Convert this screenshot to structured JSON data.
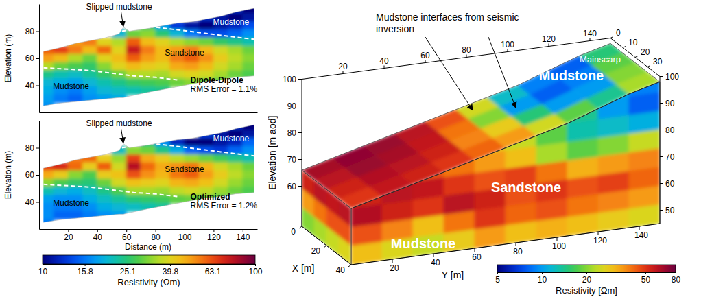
{
  "chart_data": [
    {
      "type": "heatmap",
      "title": "Dipole-Dipole",
      "annotations": [
        "Slipped mudstone",
        "Mudstone",
        "Sandstone",
        "Mudstone",
        "RMS Error = 1.1%"
      ],
      "y_label": "Elevation (m)",
      "xlim": [
        0,
        150
      ],
      "ylim": [
        20,
        100
      ],
      "yticks": [
        40,
        60,
        80
      ],
      "tick_labels": "y",
      "x": [
        5,
        15,
        25,
        35,
        45,
        55,
        65,
        75,
        85,
        95,
        105,
        115,
        125,
        135,
        145
      ],
      "y": [
        96,
        90,
        84,
        78,
        72,
        66,
        60,
        54,
        48,
        42,
        36,
        30,
        24
      ],
      "cells": [
        [
          null,
          null,
          null,
          null,
          null,
          null,
          null,
          null,
          null,
          null,
          null,
          null,
          null,
          12,
          10
        ],
        [
          null,
          null,
          null,
          null,
          null,
          null,
          null,
          null,
          null,
          null,
          null,
          12,
          11,
          10,
          11
        ],
        [
          null,
          null,
          null,
          null,
          null,
          null,
          null,
          25,
          18,
          13,
          11,
          10,
          11,
          12,
          14
        ],
        [
          null,
          null,
          null,
          null,
          null,
          20,
          30,
          32,
          25,
          20,
          16,
          14,
          14,
          15,
          17
        ],
        [
          null,
          null,
          50,
          55,
          40,
          35,
          60,
          45,
          40,
          35,
          32,
          30,
          26,
          24,
          22
        ],
        [
          60,
          65,
          55,
          45,
          58,
          40,
          75,
          55,
          45,
          50,
          55,
          45,
          38,
          34,
          30
        ],
        [
          50,
          45,
          35,
          30,
          40,
          45,
          60,
          50,
          45,
          55,
          60,
          52,
          42,
          36,
          32
        ],
        [
          35,
          30,
          28,
          26,
          32,
          40,
          45,
          42,
          40,
          48,
          50,
          45,
          38,
          34,
          30
        ],
        [
          24,
          22,
          21,
          23,
          26,
          30,
          35,
          35,
          34,
          38,
          40,
          38,
          34,
          30,
          28
        ],
        [
          20,
          19,
          18,
          20,
          22,
          24,
          26,
          27,
          28,
          30,
          32,
          30,
          28,
          null,
          null
        ],
        [
          19,
          17,
          16,
          18,
          20,
          21,
          22,
          23,
          24,
          null,
          null,
          null,
          null,
          null,
          null
        ],
        [
          18,
          16,
          15,
          17,
          18,
          19,
          null,
          null,
          null,
          null,
          null,
          null,
          null,
          null,
          null
        ],
        [
          17,
          null,
          null,
          null,
          null,
          null,
          null,
          null,
          null,
          null,
          null,
          null,
          null,
          null,
          null
        ]
      ],
      "outline": {
        "x": [
          3,
          15,
          25,
          35,
          45,
          55,
          58,
          62,
          75,
          85,
          95,
          105,
          115,
          125,
          135,
          148
        ],
        "top": [
          65,
          68,
          71,
          73,
          75,
          78,
          83,
          80,
          82,
          84,
          86,
          87,
          89,
          91,
          94,
          97
        ],
        "bottom": [
          25,
          27,
          28,
          29,
          30,
          31,
          31,
          32,
          35,
          37,
          39,
          41,
          43,
          44,
          46,
          47
        ]
      },
      "interfaces": [
        {
          "x": [
            57,
            68,
            80,
            95,
            110,
            125,
            140,
            148
          ],
          "y": [
            80,
            82,
            83,
            81,
            79,
            77,
            75,
            74
          ],
          "color": "#ffffff",
          "line_style": "dashed"
        },
        {
          "x": [
            3,
            20,
            35,
            50,
            65,
            80,
            95
          ],
          "y": [
            53,
            52,
            51,
            49,
            47,
            46,
            44
          ],
          "color": "#ffffff",
          "line_style": "dashed"
        }
      ]
    },
    {
      "type": "heatmap",
      "title": "Optimized",
      "annotations": [
        "Slipped mudstone",
        "Mudstone",
        "Sandstone",
        "Mudstone",
        "RMS Error = 1.2%"
      ],
      "y_label": "Elevation (m)",
      "x_label": "Distance (m)",
      "xlim": [
        0,
        150
      ],
      "ylim": [
        20,
        100
      ],
      "xticks": [
        20,
        40,
        60,
        80,
        100,
        120,
        140
      ],
      "yticks": [
        40,
        60,
        80
      ],
      "x": [
        5,
        15,
        25,
        35,
        45,
        55,
        65,
        75,
        85,
        95,
        105,
        115,
        125,
        135,
        145
      ],
      "y": [
        96,
        90,
        84,
        78,
        72,
        66,
        60,
        54,
        48,
        42,
        36,
        30,
        24
      ],
      "cells": [
        [
          null,
          null,
          null,
          null,
          null,
          null,
          null,
          null,
          null,
          null,
          null,
          null,
          null,
          12,
          10
        ],
        [
          null,
          null,
          null,
          null,
          null,
          null,
          null,
          null,
          null,
          null,
          null,
          13,
          11,
          10,
          11
        ],
        [
          null,
          null,
          null,
          null,
          null,
          null,
          null,
          24,
          17,
          12,
          10,
          10,
          11,
          12,
          15
        ],
        [
          null,
          null,
          null,
          null,
          null,
          21,
          32,
          30,
          24,
          19,
          15,
          14,
          13,
          15,
          17
        ],
        [
          null,
          null,
          55,
          58,
          42,
          33,
          65,
          48,
          42,
          36,
          33,
          30,
          27,
          24,
          22
        ],
        [
          65,
          70,
          58,
          42,
          60,
          38,
          80,
          58,
          48,
          52,
          56,
          46,
          38,
          34,
          30
        ],
        [
          48,
          42,
          32,
          28,
          42,
          44,
          62,
          52,
          46,
          56,
          60,
          50,
          42,
          36,
          32
        ],
        [
          32,
          28,
          26,
          25,
          30,
          38,
          44,
          42,
          40,
          46,
          48,
          44,
          38,
          33,
          30
        ],
        [
          22,
          20,
          19,
          21,
          24,
          28,
          34,
          34,
          33,
          36,
          38,
          36,
          33,
          30,
          28
        ],
        [
          18,
          17,
          17,
          19,
          21,
          23,
          25,
          26,
          27,
          29,
          30,
          29,
          28,
          null,
          null
        ],
        [
          17,
          16,
          16,
          17,
          19,
          20,
          21,
          22,
          23,
          null,
          null,
          null,
          null,
          null,
          null
        ],
        [
          17,
          15,
          15,
          16,
          17,
          18,
          null,
          null,
          null,
          null,
          null,
          null,
          null,
          null,
          null
        ],
        [
          16,
          null,
          null,
          null,
          null,
          null,
          null,
          null,
          null,
          null,
          null,
          null,
          null,
          null,
          null
        ]
      ],
      "outline": {
        "x": [
          3,
          15,
          25,
          35,
          45,
          55,
          58,
          62,
          75,
          85,
          95,
          105,
          115,
          125,
          135,
          148
        ],
        "top": [
          65,
          68,
          71,
          73,
          75,
          78,
          83,
          80,
          82,
          84,
          86,
          87,
          89,
          91,
          94,
          97
        ],
        "bottom": [
          25,
          27,
          28,
          29,
          30,
          31,
          31,
          32,
          35,
          37,
          39,
          41,
          43,
          44,
          46,
          47
        ]
      },
      "interfaces": [
        {
          "x": [
            57,
            68,
            80,
            95,
            110,
            125,
            140,
            148
          ],
          "y": [
            80,
            82,
            83,
            81,
            79,
            77,
            75,
            74
          ],
          "color": "#ffffff",
          "line_style": "dashed"
        },
        {
          "x": [
            3,
            20,
            35,
            50,
            65,
            80,
            95
          ],
          "y": [
            53,
            52,
            51,
            49,
            47,
            46,
            44
          ],
          "color": "#ffffff",
          "line_style": "dashed"
        }
      ],
      "colorbar": {
        "label": "Resistivity (Ωm)",
        "lim": [
          10,
          100
        ],
        "ticks": [
          10,
          15.8,
          25.1,
          39.8,
          63.1,
          100
        ],
        "log": true
      }
    },
    {
      "type": "heatmap3d",
      "annotations": [
        "Mudstone interfaces from seismic inversion",
        "Mainscarp",
        "Mudstone",
        "Sandstone",
        "Mudstone"
      ],
      "x_label": "X [m]",
      "y_label": "Y [m]",
      "z_label": "Elevation [m aod]",
      "xlim": [
        0,
        40
      ],
      "ylim": [
        0,
        150
      ],
      "zlim": [
        45,
        100
      ],
      "xticks": [
        0,
        20,
        40
      ],
      "x2ticks": [
        0,
        10,
        20,
        30
      ],
      "yticks": [
        20,
        40,
        60,
        80,
        100,
        120,
        140
      ],
      "y2ticks": [
        20,
        40,
        60,
        80,
        100,
        120,
        140
      ],
      "zticks": [
        60,
        70,
        80,
        90,
        100
      ],
      "z2ticks": [
        50,
        60,
        70,
        80,
        90,
        100
      ],
      "top_elevation": {
        "y": [
          0,
          15,
          30,
          45,
          60,
          75,
          90,
          105,
          120,
          135,
          150
        ],
        "z": [
          66,
          69,
          72,
          75,
          78,
          81,
          84,
          87,
          91,
          95,
          98
        ]
      },
      "top_face": {
        "x": [
          5,
          15,
          25,
          35
        ],
        "y": [
          7.5,
          22.5,
          37.5,
          52.5,
          67.5,
          82.5,
          97.5,
          112.5,
          127.5,
          142.5
        ],
        "cells": [
          [
            65,
            70,
            68,
            60,
            45,
            25,
            12,
            9,
            8,
            15
          ],
          [
            60,
            68,
            65,
            58,
            40,
            20,
            10,
            8,
            9,
            18
          ],
          [
            55,
            62,
            60,
            55,
            38,
            28,
            15,
            10,
            10,
            20
          ],
          [
            50,
            58,
            55,
            50,
            42,
            35,
            25,
            18,
            14,
            22
          ]
        ]
      },
      "front_face": {
        "y": [
          7.5,
          22.5,
          37.5,
          52.5,
          67.5,
          82.5,
          97.5,
          112.5,
          127.5,
          142.5
        ],
        "z": [
          97.5,
          90.5,
          83.5,
          76.5,
          69.5,
          62.5,
          55.5,
          48.5
        ],
        "cells": [
          [
            null,
            null,
            null,
            null,
            null,
            null,
            null,
            null,
            11,
            9
          ],
          [
            null,
            null,
            null,
            null,
            null,
            null,
            null,
            14,
            10,
            8
          ],
          [
            null,
            null,
            null,
            null,
            28,
            24,
            18,
            13,
            12,
            11
          ],
          [
            null,
            null,
            45,
            40,
            35,
            30,
            22,
            18,
            20,
            24
          ],
          [
            55,
            60,
            58,
            50,
            45,
            48,
            40,
            32,
            35,
            38
          ],
          [
            62,
            55,
            50,
            60,
            55,
            45,
            50,
            45,
            48,
            42
          ],
          [
            45,
            38,
            30,
            40,
            50,
            42,
            45,
            40,
            38,
            35
          ],
          [
            30,
            26,
            24,
            28,
            35,
            30,
            32,
            30,
            28,
            26
          ]
        ]
      },
      "end_face": {
        "x": [
          5,
          15,
          25,
          35
        ],
        "z": [
          62.5,
          55.5,
          48.5
        ],
        "cells": [
          [
            55,
            60,
            58,
            60
          ],
          [
            35,
            40,
            45,
            45
          ],
          [
            20,
            22,
            24,
            26
          ]
        ]
      },
      "colorbar": {
        "label": "Resistivity [Ωm]",
        "lim": [
          5,
          80
        ],
        "ticks": [
          5,
          10,
          20,
          50,
          80
        ],
        "log": true
      }
    }
  ]
}
